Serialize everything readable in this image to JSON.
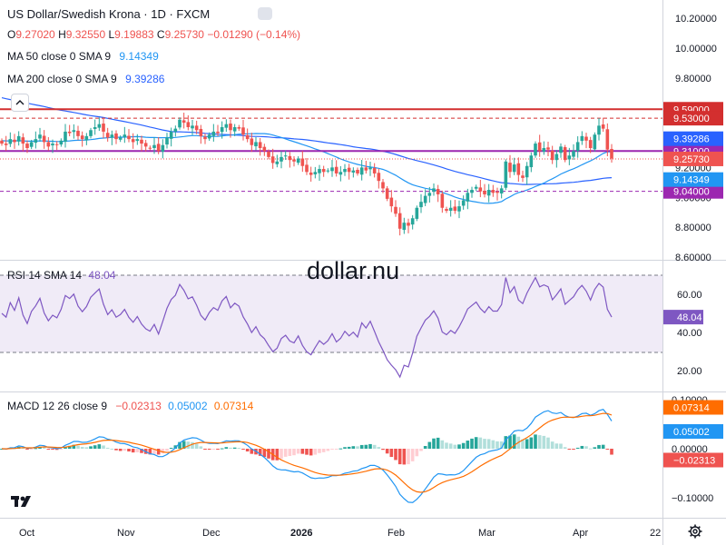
{
  "header": {
    "symbol_title": "US Dollar/Swedish Krona · 1D · FXCM",
    "ohlc": {
      "o_label": "O",
      "o": "9.27020",
      "h_label": "H",
      "h": "9.32550",
      "l_label": "L",
      "l": "9.19883",
      "c_label": "C",
      "c": "9.25730",
      "change": "−0.01290 (−0.14%)"
    },
    "ma50": {
      "label": "MA 50 close 0 SMA 9",
      "value": "9.14349",
      "color": "#2196f3"
    },
    "ma200": {
      "label": "MA 200 close 0 SMA 9",
      "value": "9.39286",
      "color": "#2962ff"
    }
  },
  "watermark": "dollar.nu",
  "colors": {
    "up": "#26a69a",
    "down": "#ef5350",
    "bg_rsi": "#ede7f6",
    "rsi_line": "#7e57c2",
    "macd_line": "#2196f3",
    "signal_line": "#ff6d00",
    "level_red": "#d32f2f",
    "level_purple": "#9c27b0"
  },
  "chart_data": [
    {
      "type": "candlestick",
      "title": "US Dollar/Swedish Krona · 1D · FXCM",
      "y_axis": {
        "ticks": [
          8.6,
          8.8,
          9.0,
          9.2,
          9.4,
          9.6,
          9.8,
          10.0,
          10.2
        ],
        "tick_labels": [
          "8.60000",
          "8.80000",
          "9.00000",
          "9.20000",
          "9.40000",
          "9.60000",
          "9.80000",
          "10.00000",
          "10.20000"
        ],
        "range": [
          8.6,
          10.2
        ]
      },
      "x_axis": {
        "labels": [
          "Oct",
          "Nov",
          "Dec",
          "2026",
          "Feb",
          "Mar",
          "Apr",
          "22"
        ]
      },
      "closes": [
        9.36,
        9.35,
        9.39,
        9.37,
        9.41,
        9.36,
        9.33,
        9.37,
        9.39,
        9.42,
        9.37,
        9.34,
        9.36,
        9.35,
        9.38,
        9.44,
        9.43,
        9.45,
        9.41,
        9.39,
        9.41,
        9.45,
        9.47,
        9.49,
        9.44,
        9.4,
        9.42,
        9.39,
        9.4,
        9.42,
        9.39,
        9.37,
        9.39,
        9.36,
        9.34,
        9.33,
        9.35,
        9.31,
        9.35,
        9.4,
        9.44,
        9.46,
        9.52,
        9.5,
        9.47,
        9.48,
        9.45,
        9.41,
        9.39,
        9.42,
        9.44,
        9.43,
        9.47,
        9.49,
        9.45,
        9.47,
        9.46,
        9.42,
        9.39,
        9.35,
        9.37,
        9.33,
        9.31,
        9.27,
        9.23,
        9.24,
        9.27,
        9.28,
        9.25,
        9.24,
        9.26,
        9.21,
        9.17,
        9.15,
        9.17,
        9.19,
        9.17,
        9.18,
        9.2,
        9.16,
        9.17,
        9.19,
        9.17,
        9.18,
        9.16,
        9.2,
        9.18,
        9.2,
        9.16,
        9.11,
        9.06,
        8.99,
        8.94,
        8.89,
        8.79,
        8.83,
        8.81,
        8.86,
        8.93,
        8.97,
        9.01,
        9.03,
        9.06,
        9.02,
        8.93,
        8.91,
        8.93,
        8.91,
        8.94,
        8.98,
        9.03,
        9.05,
        9.07,
        9.04,
        9.02,
        9.05,
        9.03,
        9.03,
        9.06,
        9.24,
        9.17,
        9.22,
        9.15,
        9.13,
        9.21,
        9.28,
        9.36,
        9.31,
        9.33,
        9.32,
        9.25,
        9.29,
        9.34,
        9.25,
        9.28,
        9.31,
        9.37,
        9.41,
        9.38,
        9.33,
        9.42,
        9.48,
        9.46,
        9.32,
        9.26
      ],
      "levels": [
        {
          "value": 9.59,
          "label": "9.59000",
          "color": "#d32f2f",
          "style": "solid"
        },
        {
          "value": 9.53,
          "label": "9.53000",
          "color": "#d32f2f",
          "style": "dashed"
        },
        {
          "value": 9.31,
          "label": "9.31000",
          "color": "#9c27b0",
          "style": "solid"
        },
        {
          "value": 9.04,
          "label": "9.04000",
          "color": "#9c27b0",
          "style": "dashed"
        }
      ],
      "last_price": {
        "value": 9.2573,
        "label": "9.25730"
      },
      "ma50_last": {
        "value": 9.14349,
        "label": "9.14349"
      },
      "ma200_last": {
        "value": 9.39286,
        "label": "9.39286"
      }
    },
    {
      "type": "line",
      "title": "RSI 14 SMA 14",
      "value_label": "48.04",
      "y_axis": {
        "ticks": [
          20,
          40,
          60
        ],
        "tick_labels": [
          "20.00",
          "40.00",
          "60.00"
        ],
        "bands": [
          30,
          70
        ]
      },
      "last_value": 48.04
    },
    {
      "type": "histogram+line",
      "title": "MACD 12 26 close 9",
      "values": {
        "histogram": "−0.02313",
        "macd": "0.05002",
        "signal": "0.07314"
      },
      "y_axis": {
        "ticks": [
          -0.1,
          0.0,
          0.1
        ],
        "tick_labels": [
          "−0.10000",
          "0.00000",
          "0.10000"
        ]
      },
      "axis_badges": [
        {
          "value": 0.07314,
          "label": "0.07314",
          "color": "#ff6d00"
        },
        {
          "value": 0.05002,
          "label": "0.05002",
          "color": "#2196f3"
        },
        {
          "value": -0.02313,
          "label": "−0.02313",
          "color": "#ef5350"
        }
      ]
    }
  ]
}
